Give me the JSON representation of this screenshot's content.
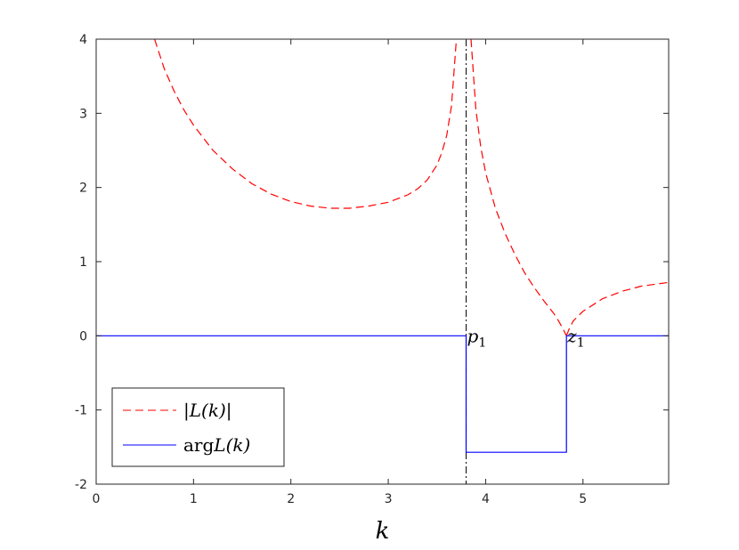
{
  "chart_data": {
    "type": "line",
    "title": "",
    "xlabel": "k",
    "ylabel": "",
    "xlim": [
      0,
      5.88
    ],
    "ylim": [
      -2,
      4
    ],
    "xticks": [
      0,
      1,
      2,
      3,
      4,
      5
    ],
    "yticks": [
      -2,
      -1,
      0,
      1,
      2,
      3,
      4
    ],
    "xtick_labels": [
      "0",
      "1",
      "2",
      "3",
      "4",
      "5"
    ],
    "ytick_labels": [
      "-2",
      "-1",
      "0",
      "1",
      "2",
      "3",
      "4"
    ],
    "grid": false,
    "legend_placement": "bottom-left",
    "series": [
      {
        "name": "|L(k)|",
        "style": "dashed",
        "color": "#ff0000",
        "segments": [
          {
            "x": [
              0.6,
              0.7,
              0.8,
              0.9,
              1.0,
              1.2,
              1.4,
              1.6,
              1.8,
              2.0,
              2.2,
              2.4,
              2.5,
              2.6,
              2.8,
              3.0,
              3.2,
              3.3,
              3.4,
              3.5,
              3.55,
              3.6,
              3.65,
              3.7
            ],
            "y": [
              4.0,
              3.6,
              3.3,
              3.05,
              2.84,
              2.5,
              2.25,
              2.05,
              1.91,
              1.81,
              1.75,
              1.72,
              1.72,
              1.72,
              1.75,
              1.8,
              1.9,
              1.98,
              2.1,
              2.3,
              2.47,
              2.7,
              3.1,
              4.0
            ]
          },
          {
            "x": [
              3.85,
              3.9,
              3.95,
              4.0,
              4.1,
              4.2,
              4.3,
              4.4,
              4.5,
              4.6,
              4.7,
              4.75,
              4.8,
              4.83
            ],
            "y": [
              4.0,
              3.05,
              2.55,
              2.2,
              1.72,
              1.38,
              1.1,
              0.85,
              0.65,
              0.47,
              0.3,
              0.2,
              0.08,
              0.0
            ]
          },
          {
            "x": [
              4.83,
              4.86,
              4.9,
              5.0,
              5.2,
              5.4,
              5.6,
              5.88
            ],
            "y": [
              0.0,
              0.1,
              0.2,
              0.33,
              0.5,
              0.6,
              0.67,
              0.72
            ]
          }
        ]
      },
      {
        "name": "arg L(k)",
        "style": "solid",
        "color": "#0000ff",
        "segments": [
          {
            "x": [
              0,
              3.8,
              3.8,
              4.83,
              4.83,
              5.88
            ],
            "y": [
              0,
              0,
              -1.57,
              -1.57,
              0,
              0
            ]
          }
        ]
      }
    ],
    "vertical_lines": [
      {
        "x": 3.8,
        "style": "dash-dot",
        "color": "#000000"
      }
    ],
    "annotations": [
      {
        "text": "p1",
        "base": "p",
        "sub": "1",
        "x": 3.8,
        "y": 0
      },
      {
        "text": "z1",
        "base": "z",
        "sub": "1",
        "x": 4.83,
        "y": 0
      }
    ],
    "legend": [
      {
        "label": "|L(k)|",
        "color": "#ff0000",
        "style": "dashed"
      },
      {
        "label": "arg L(k)",
        "prefix": "arg",
        "body": "L(k)",
        "color": "#0000ff",
        "style": "solid"
      }
    ]
  }
}
